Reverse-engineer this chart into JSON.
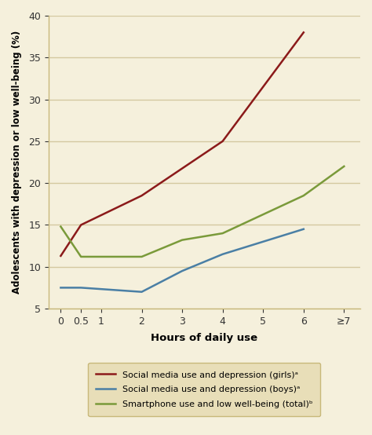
{
  "x_positions": [
    0,
    0.5,
    1,
    2,
    3,
    4,
    5,
    6,
    7
  ],
  "x_labels": [
    "0",
    "0.5",
    "1",
    "2",
    "3",
    "4",
    "5",
    "6",
    "≥7"
  ],
  "girls_x": [
    0,
    0.5,
    2,
    4,
    6
  ],
  "girls_vals": [
    11.3,
    15.0,
    18.5,
    25.0,
    38.0
  ],
  "boys_x": [
    0,
    0.5,
    2,
    3,
    4,
    5,
    6
  ],
  "boys_vals": [
    7.5,
    7.5,
    7.0,
    9.5,
    11.5,
    13.0,
    14.5
  ],
  "total_x": [
    0,
    0.5,
    2,
    3,
    4,
    6,
    7
  ],
  "total_vals": [
    14.8,
    11.2,
    11.2,
    13.2,
    14.0,
    18.5,
    22.0
  ],
  "girls_color": "#8B1A1A",
  "boys_color": "#4A7FA5",
  "total_color": "#7A9A3A",
  "background_color": "#F5F0DC",
  "grid_color": "#D4C8A0",
  "spine_color": "#C8B87A",
  "ylim": [
    5,
    40
  ],
  "yticks": [
    5,
    10,
    15,
    20,
    25,
    30,
    35,
    40
  ],
  "xlim": [
    -0.3,
    7.4
  ],
  "ylabel": "Adolescents with depression or low well-being (%)",
  "xlabel": "Hours of daily use",
  "legend_girls": "Social media use and depression (girls)ᵃ",
  "legend_boys": "Social media use and depression (boys)ᵃ",
  "legend_total": "Smartphone use and low well-being (total)ᵇ",
  "linewidth": 1.8,
  "legend_bg": "#E8DEB8",
  "legend_edge": "#C8B87A"
}
